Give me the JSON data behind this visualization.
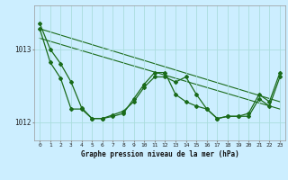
{
  "hours": [
    0,
    1,
    2,
    3,
    4,
    5,
    6,
    7,
    8,
    9,
    10,
    11,
    12,
    13,
    14,
    15,
    16,
    17,
    18,
    19,
    20,
    21,
    22,
    23
  ],
  "pressure": [
    1013.35,
    1013.0,
    1012.8,
    1012.55,
    1012.2,
    1012.05,
    1012.05,
    1012.1,
    1012.15,
    1012.28,
    1012.48,
    1012.62,
    1012.62,
    1012.55,
    1012.62,
    1012.38,
    1012.18,
    1012.05,
    1012.08,
    1012.08,
    1012.08,
    1012.32,
    1012.22,
    1012.62
  ],
  "pressure2": [
    1013.28,
    1012.82,
    1012.6,
    1012.18,
    1012.18,
    1012.05,
    1012.05,
    1012.08,
    1012.12,
    1012.32,
    1012.52,
    1012.68,
    1012.68,
    1012.38,
    1012.28,
    1012.22,
    1012.18,
    1012.05,
    1012.08,
    1012.08,
    1012.12,
    1012.38,
    1012.28,
    1012.68
  ],
  "trend1_x": [
    0,
    23
  ],
  "trend1_y": [
    1013.28,
    1012.28
  ],
  "trend2_x": [
    0,
    23
  ],
  "trend2_y": [
    1013.15,
    1012.18
  ],
  "line_color": "#1a6b1a",
  "bg_color": "#cceeff",
  "grid_color": "#aadddd",
  "xlabel": "Graphe pression niveau de la mer (hPa)",
  "ylim_min": 1011.75,
  "ylim_max": 1013.6,
  "yticks": [
    1012,
    1013
  ],
  "xticks": [
    0,
    1,
    2,
    3,
    4,
    5,
    6,
    7,
    8,
    9,
    10,
    11,
    12,
    13,
    14,
    15,
    16,
    17,
    18,
    19,
    20,
    21,
    22,
    23
  ]
}
